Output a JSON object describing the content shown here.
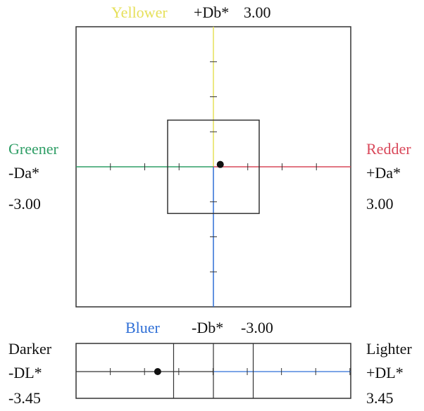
{
  "colors": {
    "yellow": "#e6e05a",
    "green": "#2f9e66",
    "red": "#d9485a",
    "blue": "#2f6fd6",
    "frame": "#333333"
  },
  "labels": {
    "top_color": "Yellower",
    "top_axis": "+Db*",
    "top_value": "3.00",
    "left_color": "Greener",
    "left_axis": "-Da*",
    "left_value": "-3.00",
    "right_color": "Redder",
    "right_axis": "+Da*",
    "right_value": "3.00",
    "bottom_color": "Bluer",
    "bottom_axis": "-Db*",
    "bottom_value": "-3.00",
    "dl_left_word": "Darker",
    "dl_left_axis": "-DL*",
    "dl_left_value": "-3.45",
    "dl_right_word": "Lighter",
    "dl_right_axis": "+DL*",
    "dl_right_value": "3.45"
  },
  "chart_data": [
    {
      "type": "scatter",
      "x_axis": "Da*",
      "y_axis": "Db*",
      "xlim": [
        -3.0,
        3.0
      ],
      "ylim": [
        -3.0,
        3.0
      ],
      "tick_step": 0.75,
      "tolerance_box": {
        "x": [
          -1.0,
          1.0
        ],
        "y": [
          -1.0,
          1.0
        ]
      },
      "points": [
        {
          "x": 0.15,
          "y": 0.05
        }
      ]
    },
    {
      "type": "scatter",
      "x_axis": "DL*",
      "xlim": [
        -3.45,
        3.45
      ],
      "tick_step": 0.86,
      "tolerance_lines": [
        -1.0,
        0,
        1.0
      ],
      "points": [
        {
          "x": -1.4
        }
      ]
    }
  ]
}
